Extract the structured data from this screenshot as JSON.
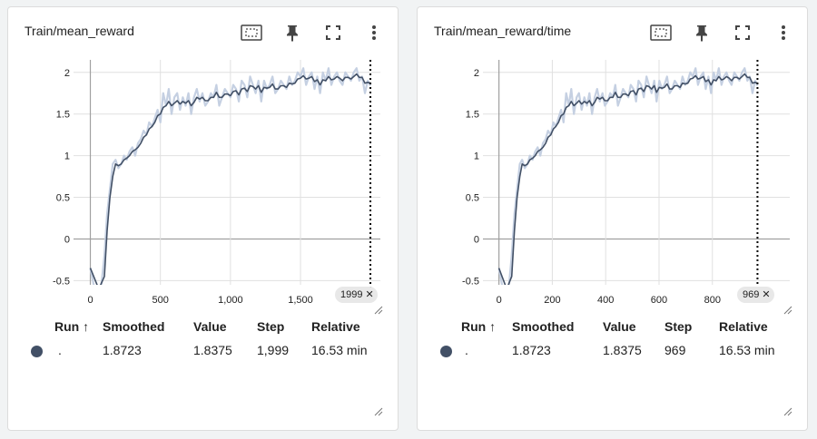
{
  "colors": {
    "smoothed": "#425066",
    "raw": "#c5d0e2",
    "grid": "#e0e0e0",
    "zero_line": "#a0a0a0",
    "card_bg": "#ffffff",
    "page_bg": "#f1f3f4"
  },
  "icons": [
    "fit-domain-icon",
    "pin-icon",
    "fullscreen-icon",
    "more-vert-icon",
    "close-icon",
    "resize-icon"
  ],
  "cards": [
    {
      "title": "Train/mean_reward",
      "step_badge": "1999",
      "table": {
        "headers": {
          "run": "Run ↑",
          "smoothed": "Smoothed",
          "value": "Value",
          "step": "Step",
          "relative": "Relative"
        },
        "row": {
          "run": ".",
          "smoothed": "1.8723",
          "value": "1.8375",
          "step": "1,999",
          "relative": "16.53 min"
        }
      }
    },
    {
      "title": "Train/mean_reward/time",
      "step_badge": "969",
      "table": {
        "headers": {
          "run": "Run ↑",
          "smoothed": "Smoothed",
          "value": "Value",
          "step": "Step",
          "relative": "Relative"
        },
        "row": {
          "run": ".",
          "smoothed": "1.8723",
          "value": "1.8375",
          "step": "969",
          "relative": "16.53 min"
        }
      }
    }
  ],
  "chart_data": [
    {
      "type": "line",
      "title": "Train/mean_reward",
      "x_label": "",
      "y_label": "",
      "xlim": [
        -120,
        2070
      ],
      "ylim": [
        -0.55,
        2.15
      ],
      "x_ticks": [
        0,
        500,
        1000,
        1500
      ],
      "x_tick_labels": [
        "0",
        "500",
        "1,000",
        "1,500"
      ],
      "y_ticks": [
        -0.5,
        0,
        0.5,
        1,
        1.5,
        2
      ],
      "y_tick_labels": [
        "-0.5",
        "0",
        "0.5",
        "1",
        "1.5",
        "2"
      ],
      "grid": true,
      "cursor_x": 1999,
      "series": [
        {
          "x": [
            0,
            60,
            100,
            120,
            140,
            160,
            180,
            200,
            220,
            240,
            260,
            280,
            300,
            320,
            340,
            360,
            380,
            400,
            420,
            440,
            460,
            480,
            500,
            520,
            540,
            560,
            580,
            600,
            620,
            640,
            660,
            680,
            700,
            720,
            740,
            760,
            780,
            800,
            820,
            840,
            860,
            880,
            900,
            920,
            940,
            960,
            980,
            1000,
            1020,
            1040,
            1060,
            1080,
            1100,
            1120,
            1140,
            1160,
            1180,
            1200,
            1220,
            1240,
            1260,
            1280,
            1300,
            1320,
            1340,
            1360,
            1380,
            1400,
            1420,
            1440,
            1460,
            1480,
            1500,
            1520,
            1540,
            1560,
            1580,
            1600,
            1620,
            1640,
            1660,
            1680,
            1700,
            1720,
            1740,
            1760,
            1780,
            1800,
            1820,
            1840,
            1860,
            1880,
            1900,
            1920,
            1940,
            1960,
            1980,
            1999
          ],
          "raw": [
            -0.35,
            -0.85,
            -0.2,
            0.3,
            0.6,
            0.9,
            0.95,
            0.85,
            0.9,
            1.0,
            0.95,
            1.05,
            1.1,
            1.0,
            1.15,
            1.2,
            1.3,
            1.25,
            1.4,
            1.35,
            1.45,
            1.55,
            1.4,
            1.75,
            1.6,
            1.8,
            1.5,
            1.7,
            1.75,
            1.55,
            1.7,
            1.6,
            1.75,
            1.5,
            1.7,
            1.8,
            1.65,
            1.75,
            1.6,
            1.65,
            1.75,
            1.7,
            1.85,
            1.6,
            1.7,
            1.8,
            1.75,
            1.7,
            1.85,
            1.8,
            1.65,
            1.9,
            1.85,
            1.7,
            1.95,
            1.85,
            1.75,
            1.9,
            1.65,
            1.9,
            1.8,
            1.85,
            1.95,
            1.75,
            1.8,
            1.9,
            1.85,
            1.8,
            1.95,
            1.85,
            1.9,
            2.0,
            1.95,
            2.05,
            1.85,
            1.95,
            2.0,
            1.8,
            1.95,
            1.75,
            2.0,
            1.9,
            2.05,
            1.85,
            1.95,
            2.0,
            1.9,
            1.85,
            2.0,
            1.95,
            1.9,
            2.0,
            2.05,
            1.9,
            1.95,
            1.75,
            1.9,
            1.84
          ],
          "smoothed": [
            -0.35,
            -0.6,
            -0.45,
            0.1,
            0.5,
            0.75,
            0.9,
            0.88,
            0.9,
            0.95,
            0.97,
            1.0,
            1.05,
            1.07,
            1.1,
            1.15,
            1.22,
            1.25,
            1.32,
            1.35,
            1.4,
            1.48,
            1.5,
            1.58,
            1.6,
            1.65,
            1.6,
            1.63,
            1.66,
            1.62,
            1.65,
            1.63,
            1.66,
            1.6,
            1.64,
            1.7,
            1.68,
            1.7,
            1.66,
            1.66,
            1.7,
            1.7,
            1.76,
            1.7,
            1.7,
            1.74,
            1.74,
            1.72,
            1.77,
            1.78,
            1.73,
            1.8,
            1.81,
            1.77,
            1.84,
            1.83,
            1.8,
            1.84,
            1.76,
            1.82,
            1.81,
            1.82,
            1.86,
            1.8,
            1.8,
            1.84,
            1.84,
            1.82,
            1.87,
            1.86,
            1.87,
            1.92,
            1.93,
            1.96,
            1.92,
            1.93,
            1.95,
            1.89,
            1.91,
            1.85,
            1.91,
            1.9,
            1.95,
            1.91,
            1.92,
            1.95,
            1.93,
            1.9,
            1.94,
            1.94,
            1.92,
            1.95,
            1.98,
            1.94,
            1.94,
            1.87,
            1.88,
            1.87
          ]
        }
      ]
    },
    {
      "type": "line",
      "title": "Train/mean_reward/time",
      "x_label": "",
      "y_label": "",
      "xlim": [
        -60,
        1090
      ],
      "ylim": [
        -0.55,
        2.15
      ],
      "x_ticks": [
        0,
        200,
        400,
        600,
        800
      ],
      "x_tick_labels": [
        "0",
        "200",
        "400",
        "600",
        "800"
      ],
      "y_ticks": [
        -0.5,
        0,
        0.5,
        1,
        1.5,
        2
      ],
      "y_tick_labels": [
        "-0.5",
        "0",
        "0.5",
        "1",
        "1.5",
        "2"
      ],
      "grid": true,
      "cursor_x": 969,
      "series": [
        {
          "x": [
            0,
            29,
            48,
            58,
            68,
            78,
            87,
            97,
            107,
            116,
            126,
            136,
            145,
            155,
            165,
            175,
            184,
            194,
            204,
            213,
            223,
            233,
            242,
            252,
            262,
            271,
            281,
            291,
            300,
            310,
            320,
            330,
            339,
            349,
            359,
            368,
            378,
            388,
            397,
            407,
            417,
            427,
            436,
            446,
            456,
            465,
            475,
            485,
            494,
            504,
            514,
            523,
            533,
            543,
            553,
            562,
            572,
            582,
            591,
            601,
            611,
            620,
            630,
            640,
            649,
            659,
            669,
            679,
            688,
            698,
            708,
            717,
            727,
            737,
            746,
            756,
            766,
            775,
            785,
            795,
            805,
            814,
            824,
            834,
            843,
            853,
            863,
            872,
            882,
            892,
            901,
            911,
            921,
            931,
            940,
            950,
            960,
            969
          ],
          "raw": [
            -0.35,
            -0.85,
            -0.2,
            0.3,
            0.6,
            0.9,
            0.95,
            0.85,
            0.9,
            1.0,
            0.95,
            1.05,
            1.1,
            1.0,
            1.15,
            1.2,
            1.3,
            1.25,
            1.4,
            1.35,
            1.45,
            1.55,
            1.4,
            1.75,
            1.6,
            1.8,
            1.5,
            1.7,
            1.75,
            1.55,
            1.7,
            1.6,
            1.75,
            1.5,
            1.7,
            1.8,
            1.65,
            1.75,
            1.6,
            1.65,
            1.75,
            1.7,
            1.85,
            1.6,
            1.7,
            1.8,
            1.75,
            1.7,
            1.85,
            1.8,
            1.65,
            1.9,
            1.85,
            1.7,
            1.95,
            1.85,
            1.75,
            1.9,
            1.65,
            1.9,
            1.8,
            1.85,
            1.95,
            1.75,
            1.8,
            1.9,
            1.85,
            1.8,
            1.95,
            1.85,
            1.9,
            2.0,
            1.95,
            2.05,
            1.85,
            1.95,
            2.0,
            1.8,
            1.95,
            1.75,
            2.0,
            1.9,
            2.05,
            1.85,
            1.95,
            2.0,
            1.9,
            1.85,
            2.0,
            1.95,
            1.9,
            2.0,
            2.05,
            1.9,
            1.95,
            1.75,
            1.9,
            1.84
          ],
          "smoothed": [
            -0.35,
            -0.6,
            -0.45,
            0.1,
            0.5,
            0.75,
            0.9,
            0.88,
            0.9,
            0.95,
            0.97,
            1.0,
            1.05,
            1.07,
            1.1,
            1.15,
            1.22,
            1.25,
            1.32,
            1.35,
            1.4,
            1.48,
            1.5,
            1.58,
            1.6,
            1.65,
            1.6,
            1.63,
            1.66,
            1.62,
            1.65,
            1.63,
            1.66,
            1.6,
            1.64,
            1.7,
            1.68,
            1.7,
            1.66,
            1.66,
            1.7,
            1.7,
            1.76,
            1.7,
            1.7,
            1.74,
            1.74,
            1.72,
            1.77,
            1.78,
            1.73,
            1.8,
            1.81,
            1.77,
            1.84,
            1.83,
            1.8,
            1.84,
            1.76,
            1.82,
            1.81,
            1.82,
            1.86,
            1.8,
            1.8,
            1.84,
            1.84,
            1.82,
            1.87,
            1.86,
            1.87,
            1.92,
            1.93,
            1.96,
            1.92,
            1.93,
            1.95,
            1.89,
            1.91,
            1.85,
            1.91,
            1.9,
            1.95,
            1.91,
            1.92,
            1.95,
            1.93,
            1.9,
            1.94,
            1.94,
            1.92,
            1.95,
            1.98,
            1.94,
            1.94,
            1.87,
            1.88,
            1.87
          ]
        }
      ]
    }
  ]
}
